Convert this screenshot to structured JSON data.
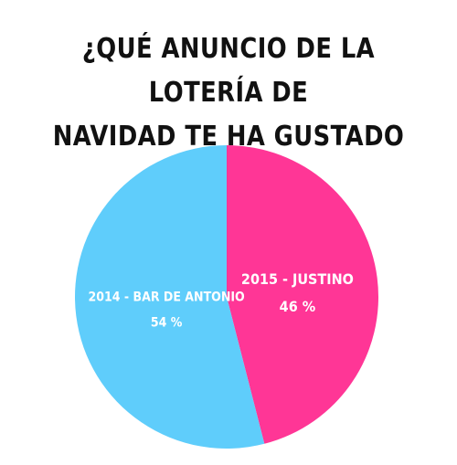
{
  "title": {
    "line1": "¿QUÉ ANUNCIO DE LA LOTERÍA DE",
    "line2": "NAVIDAD TE HA GUSTADO MÁS?"
  },
  "chart_data": {
    "type": "pie",
    "title": "¿QUÉ ANUNCIO DE LA LOTERÍA DE NAVIDAD TE HA GUSTADO MÁS?",
    "start_angle_deg": 0,
    "direction": "clockwise",
    "slices": [
      {
        "label": "2015 - JUSTINO",
        "value": 46,
        "value_label": "46 %",
        "color": "#ff3696"
      },
      {
        "label": "2014 - BAR DE ANTONIO",
        "value": 54,
        "value_label": "54 %",
        "color": "#5fcdfb"
      }
    ]
  }
}
